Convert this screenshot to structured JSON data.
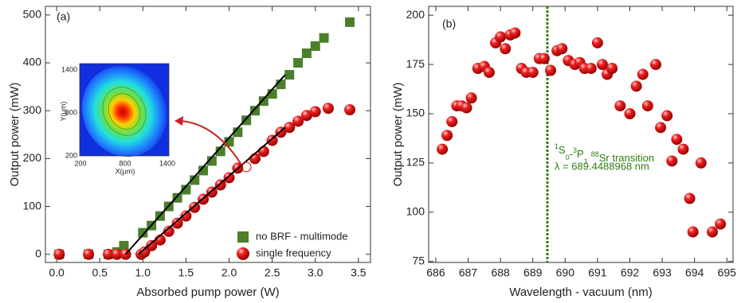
{
  "chart_data": [
    {
      "type": "scatter",
      "label": "(a)",
      "xlabel": "Absorbed pump power (W)",
      "ylabel": "Output power (mW)",
      "xlim": [
        -0.13,
        3.64
      ],
      "ylim": [
        -17,
        518
      ],
      "xticks": [
        {
          "value": 0,
          "label": "0.0"
        },
        0.5,
        {
          "value": 1,
          "label": "1.0"
        },
        1.5,
        {
          "value": 2,
          "label": "2.0"
        },
        2.5,
        {
          "value": 3,
          "label": "3.0"
        },
        3.5
      ],
      "yticks": [
        0,
        100,
        200,
        300,
        400,
        500
      ],
      "legend": "lower right",
      "series": [
        {
          "name": "no BRF - multimode",
          "color": "#4b7f2b",
          "marker": "square",
          "x": [
            0.03,
            0.37,
            0.6,
            0.7,
            0.78,
            1.0,
            1.1,
            1.2,
            1.3,
            1.4,
            1.5,
            1.6,
            1.7,
            1.8,
            1.9,
            2.0,
            2.1,
            2.2,
            2.3,
            2.4,
            2.5,
            2.6,
            2.7,
            2.8,
            2.9,
            3.0,
            3.1,
            3.4
          ],
          "values": [
            0,
            0,
            0,
            5,
            18,
            45,
            60,
            80,
            100,
            118,
            135,
            155,
            175,
            195,
            215,
            235,
            255,
            280,
            300,
            320,
            335,
            355,
            375,
            400,
            420,
            435,
            452,
            485
          ]
        },
        {
          "name": "single frequency",
          "color": "#e00000",
          "marker": "circle",
          "x": [
            0.03,
            0.37,
            0.6,
            0.7,
            0.8,
            0.98,
            1.02,
            1.1,
            1.2,
            1.3,
            1.4,
            1.5,
            1.6,
            1.7,
            1.8,
            1.9,
            2.0,
            2.1,
            2.3,
            2.4,
            2.5,
            2.6,
            2.7,
            2.8,
            2.9,
            3.0,
            3.15,
            3.4
          ],
          "values": [
            0,
            0,
            0,
            0,
            0,
            0,
            5,
            18,
            30,
            48,
            65,
            80,
            98,
            115,
            130,
            145,
            160,
            180,
            200,
            215,
            238,
            255,
            265,
            278,
            290,
            298,
            305,
            302
          ]
        }
      ],
      "fit_lines": [
        {
          "color": "#000000",
          "x": [
            0.8,
            2.65
          ],
          "values": [
            0,
            375
          ]
        },
        {
          "color": "#000000",
          "x": [
            0.95,
            2.65
          ],
          "values": [
            0,
            265
          ]
        }
      ],
      "inset": {
        "xlabel": "X(μm)",
        "ylabel": "Y(μm)",
        "xticks": [
          200,
          800,
          1400
        ],
        "yticks": [
          200,
          800,
          1400
        ]
      }
    },
    {
      "type": "scatter",
      "label": "(b)",
      "xlabel": "Wavelength - vacuum (nm)",
      "ylabel": "Output power (mW)",
      "xlim": [
        685.78,
        695.19
      ],
      "ylim": [
        74.5,
        204.5
      ],
      "xticks": [
        686,
        687,
        688,
        689,
        690,
        691,
        692,
        693,
        694,
        695
      ],
      "yticks": [
        75,
        100,
        125,
        150,
        175,
        200
      ],
      "series": [
        {
          "color": "#e00000",
          "marker": "circle",
          "x": [
            686.2,
            686.35,
            686.5,
            686.65,
            686.8,
            686.95,
            687.1,
            687.3,
            687.5,
            687.65,
            687.85,
            688.0,
            688.15,
            688.3,
            688.45,
            688.65,
            688.8,
            689.0,
            689.2,
            689.35,
            689.55,
            689.75,
            689.9,
            690.1,
            690.3,
            690.45,
            690.6,
            690.8,
            691.0,
            691.15,
            691.3,
            691.45,
            691.7,
            692.0,
            692.2,
            692.4,
            692.55,
            692.8,
            692.95,
            693.15,
            693.3,
            693.45,
            693.65,
            693.85,
            693.95,
            694.2,
            694.55,
            694.8
          ],
          "values": [
            132,
            139,
            146,
            154,
            154,
            153,
            158,
            173,
            174,
            171,
            186,
            189,
            183,
            190,
            191,
            173,
            171,
            171,
            178,
            178,
            172,
            182,
            183,
            177,
            175,
            176,
            173,
            173,
            186,
            175,
            170,
            173,
            154,
            150,
            164,
            170,
            154,
            175,
            143,
            149,
            126,
            137,
            132,
            107,
            90,
            125,
            90,
            94
          ]
        }
      ],
      "marker_line": {
        "x": 689.45,
        "color": "#2e7d12"
      },
      "annotation": {
        "parts": [
          [
            "1",
            "sup"
          ],
          [
            "S",
            "n"
          ],
          [
            "0",
            "sub"
          ],
          [
            "-",
            "n"
          ],
          [
            "3",
            "sup"
          ],
          [
            "P",
            "n"
          ],
          [
            "1",
            "sub"
          ],
          [
            "88",
            "sup"
          ],
          [
            "Sr transition",
            "n"
          ]
        ],
        "line2": "λ = 689.4488968 nm",
        "color": "#2e7d12"
      }
    }
  ]
}
